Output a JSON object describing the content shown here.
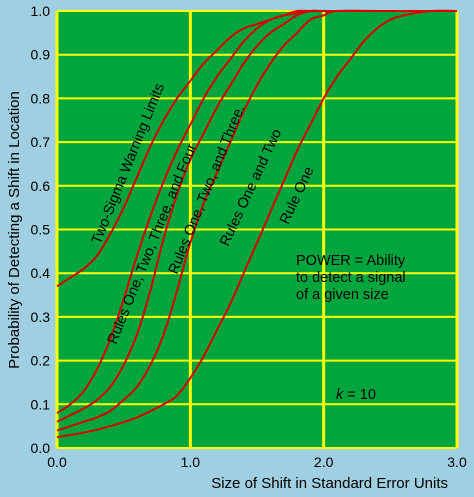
{
  "chart_data": {
    "type": "line",
    "title": "",
    "xlabel": "Size of Shift in Standard Error Units",
    "ylabel": "Probability of Detecting a Shift in Location",
    "xlim": [
      0,
      3
    ],
    "ylim": [
      0,
      1
    ],
    "x_ticks": [
      "0.0",
      "1.0",
      "2.0",
      "3.0"
    ],
    "y_ticks": [
      "0.0",
      "0.1",
      "0.2",
      "0.3",
      "0.4",
      "0.5",
      "0.6",
      "0.7",
      "0.8",
      "0.9",
      "1.0"
    ],
    "grid": true,
    "colors": {
      "background": "#9fcfe0",
      "plot_area": "#00a63d",
      "grid": "#ffff00",
      "curves": "#d90000"
    },
    "series": [
      {
        "name": "Two-Sigma Warning Limits",
        "x": [
          0,
          0.1,
          0.2,
          0.3,
          0.4,
          0.5,
          0.6,
          0.7,
          0.8,
          0.9,
          1.0,
          1.1,
          1.2,
          1.3,
          1.4,
          1.5,
          1.6,
          1.7,
          1.8,
          1.9,
          2.0,
          2.2,
          2.5,
          3.0
        ],
        "y": [
          0.37,
          0.39,
          0.41,
          0.44,
          0.49,
          0.55,
          0.62,
          0.69,
          0.75,
          0.8,
          0.84,
          0.88,
          0.91,
          0.94,
          0.96,
          0.97,
          0.98,
          0.99,
          0.995,
          1.0,
          1.0,
          1.0,
          1.0,
          1.0
        ]
      },
      {
        "name": "Rules One, Two, Three, and Four",
        "x": [
          0,
          0.1,
          0.2,
          0.3,
          0.4,
          0.5,
          0.6,
          0.7,
          0.8,
          0.9,
          1.0,
          1.1,
          1.2,
          1.3,
          1.4,
          1.5,
          1.6,
          1.7,
          1.8,
          1.9,
          2.0,
          2.5,
          3.0
        ],
        "y": [
          0.08,
          0.1,
          0.13,
          0.18,
          0.25,
          0.34,
          0.44,
          0.53,
          0.61,
          0.68,
          0.74,
          0.8,
          0.85,
          0.89,
          0.93,
          0.96,
          0.98,
          0.99,
          1.0,
          1.0,
          1.0,
          1.0,
          1.0
        ]
      },
      {
        "name": "Rules One, Two, and Three.",
        "x": [
          0,
          0.1,
          0.2,
          0.3,
          0.4,
          0.5,
          0.6,
          0.7,
          0.8,
          0.9,
          1.0,
          1.1,
          1.2,
          1.3,
          1.4,
          1.5,
          1.6,
          1.7,
          1.8,
          1.9,
          2.0,
          2.5,
          3.0
        ],
        "y": [
          0.06,
          0.075,
          0.09,
          0.11,
          0.14,
          0.19,
          0.26,
          0.36,
          0.48,
          0.58,
          0.66,
          0.72,
          0.78,
          0.83,
          0.88,
          0.92,
          0.95,
          0.97,
          0.99,
          1.0,
          1.0,
          1.0,
          1.0
        ]
      },
      {
        "name": "Rules One and Two",
        "x": [
          0,
          0.1,
          0.2,
          0.3,
          0.4,
          0.5,
          0.6,
          0.7,
          0.8,
          0.9,
          1.0,
          1.1,
          1.2,
          1.3,
          1.4,
          1.5,
          1.6,
          1.7,
          1.8,
          1.9,
          2.0,
          2.1,
          2.5,
          3.0
        ],
        "y": [
          0.04,
          0.05,
          0.06,
          0.07,
          0.085,
          0.11,
          0.14,
          0.19,
          0.26,
          0.36,
          0.47,
          0.56,
          0.63,
          0.7,
          0.77,
          0.83,
          0.88,
          0.92,
          0.95,
          0.98,
          0.99,
          1.0,
          1.0,
          1.0
        ]
      },
      {
        "name": "Rule One",
        "x": [
          0,
          0.2,
          0.4,
          0.6,
          0.8,
          0.9,
          1.0,
          1.1,
          1.2,
          1.3,
          1.4,
          1.5,
          1.6,
          1.7,
          1.8,
          1.9,
          2.0,
          2.1,
          2.2,
          2.3,
          2.4,
          2.5,
          2.6,
          2.8,
          3.0
        ],
        "y": [
          0.025,
          0.035,
          0.05,
          0.07,
          0.1,
          0.12,
          0.16,
          0.21,
          0.27,
          0.33,
          0.4,
          0.47,
          0.54,
          0.61,
          0.68,
          0.74,
          0.8,
          0.85,
          0.89,
          0.93,
          0.96,
          0.98,
          0.99,
          1.0,
          1.0
        ]
      }
    ],
    "annotations": {
      "power_lines": [
        "POWER = Ability",
        "to detect a signal",
        "of a given size"
      ],
      "k_symbol": "k",
      "k_rest": " = 10"
    }
  }
}
